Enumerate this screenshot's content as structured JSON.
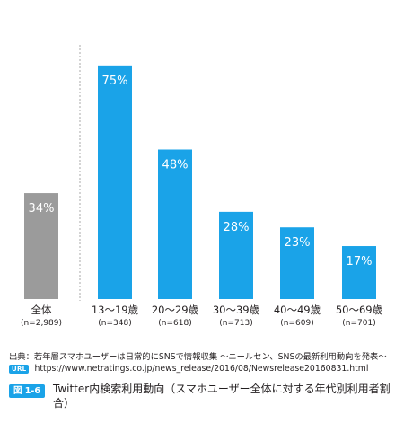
{
  "chart_data": {
    "type": "bar",
    "title": "",
    "xlabel": "",
    "ylabel": "",
    "ylim": [
      0,
      80
    ],
    "grid": false,
    "categories": [
      "全体",
      "13〜19歳",
      "20〜29歳",
      "30〜39歳",
      "40〜49歳",
      "50〜69歳"
    ],
    "sample_sizes": [
      "(n=2,989)",
      "(n=348)",
      "(n=618)",
      "(n=713)",
      "(n=609)",
      "(n=701)"
    ],
    "values": [
      34,
      75,
      48,
      28,
      23,
      17
    ],
    "value_labels": [
      "34%",
      "75%",
      "48%",
      "28%",
      "23%",
      "17%"
    ],
    "colors": [
      "#9b9b9b",
      "#1aa3e8",
      "#1aa3e8",
      "#1aa3e8",
      "#1aa3e8",
      "#1aa3e8"
    ],
    "divider_color": "#aaaaaa"
  },
  "source": {
    "label": "出典：若年層スマホユーザーは日常的にSNSで情報収集 〜ニールセン、SNSの最新利用動向を発表〜",
    "url_badge": "URL",
    "url": "https://www.netratings.co.jp/news_release/2016/08/Newsrelease20160831.html"
  },
  "figure": {
    "badge": "図 1-6",
    "caption": "Twitter内検索利用動向（スマホユーザー全体に対する年代別利用者割合）"
  },
  "accent": "#1aa3e8"
}
